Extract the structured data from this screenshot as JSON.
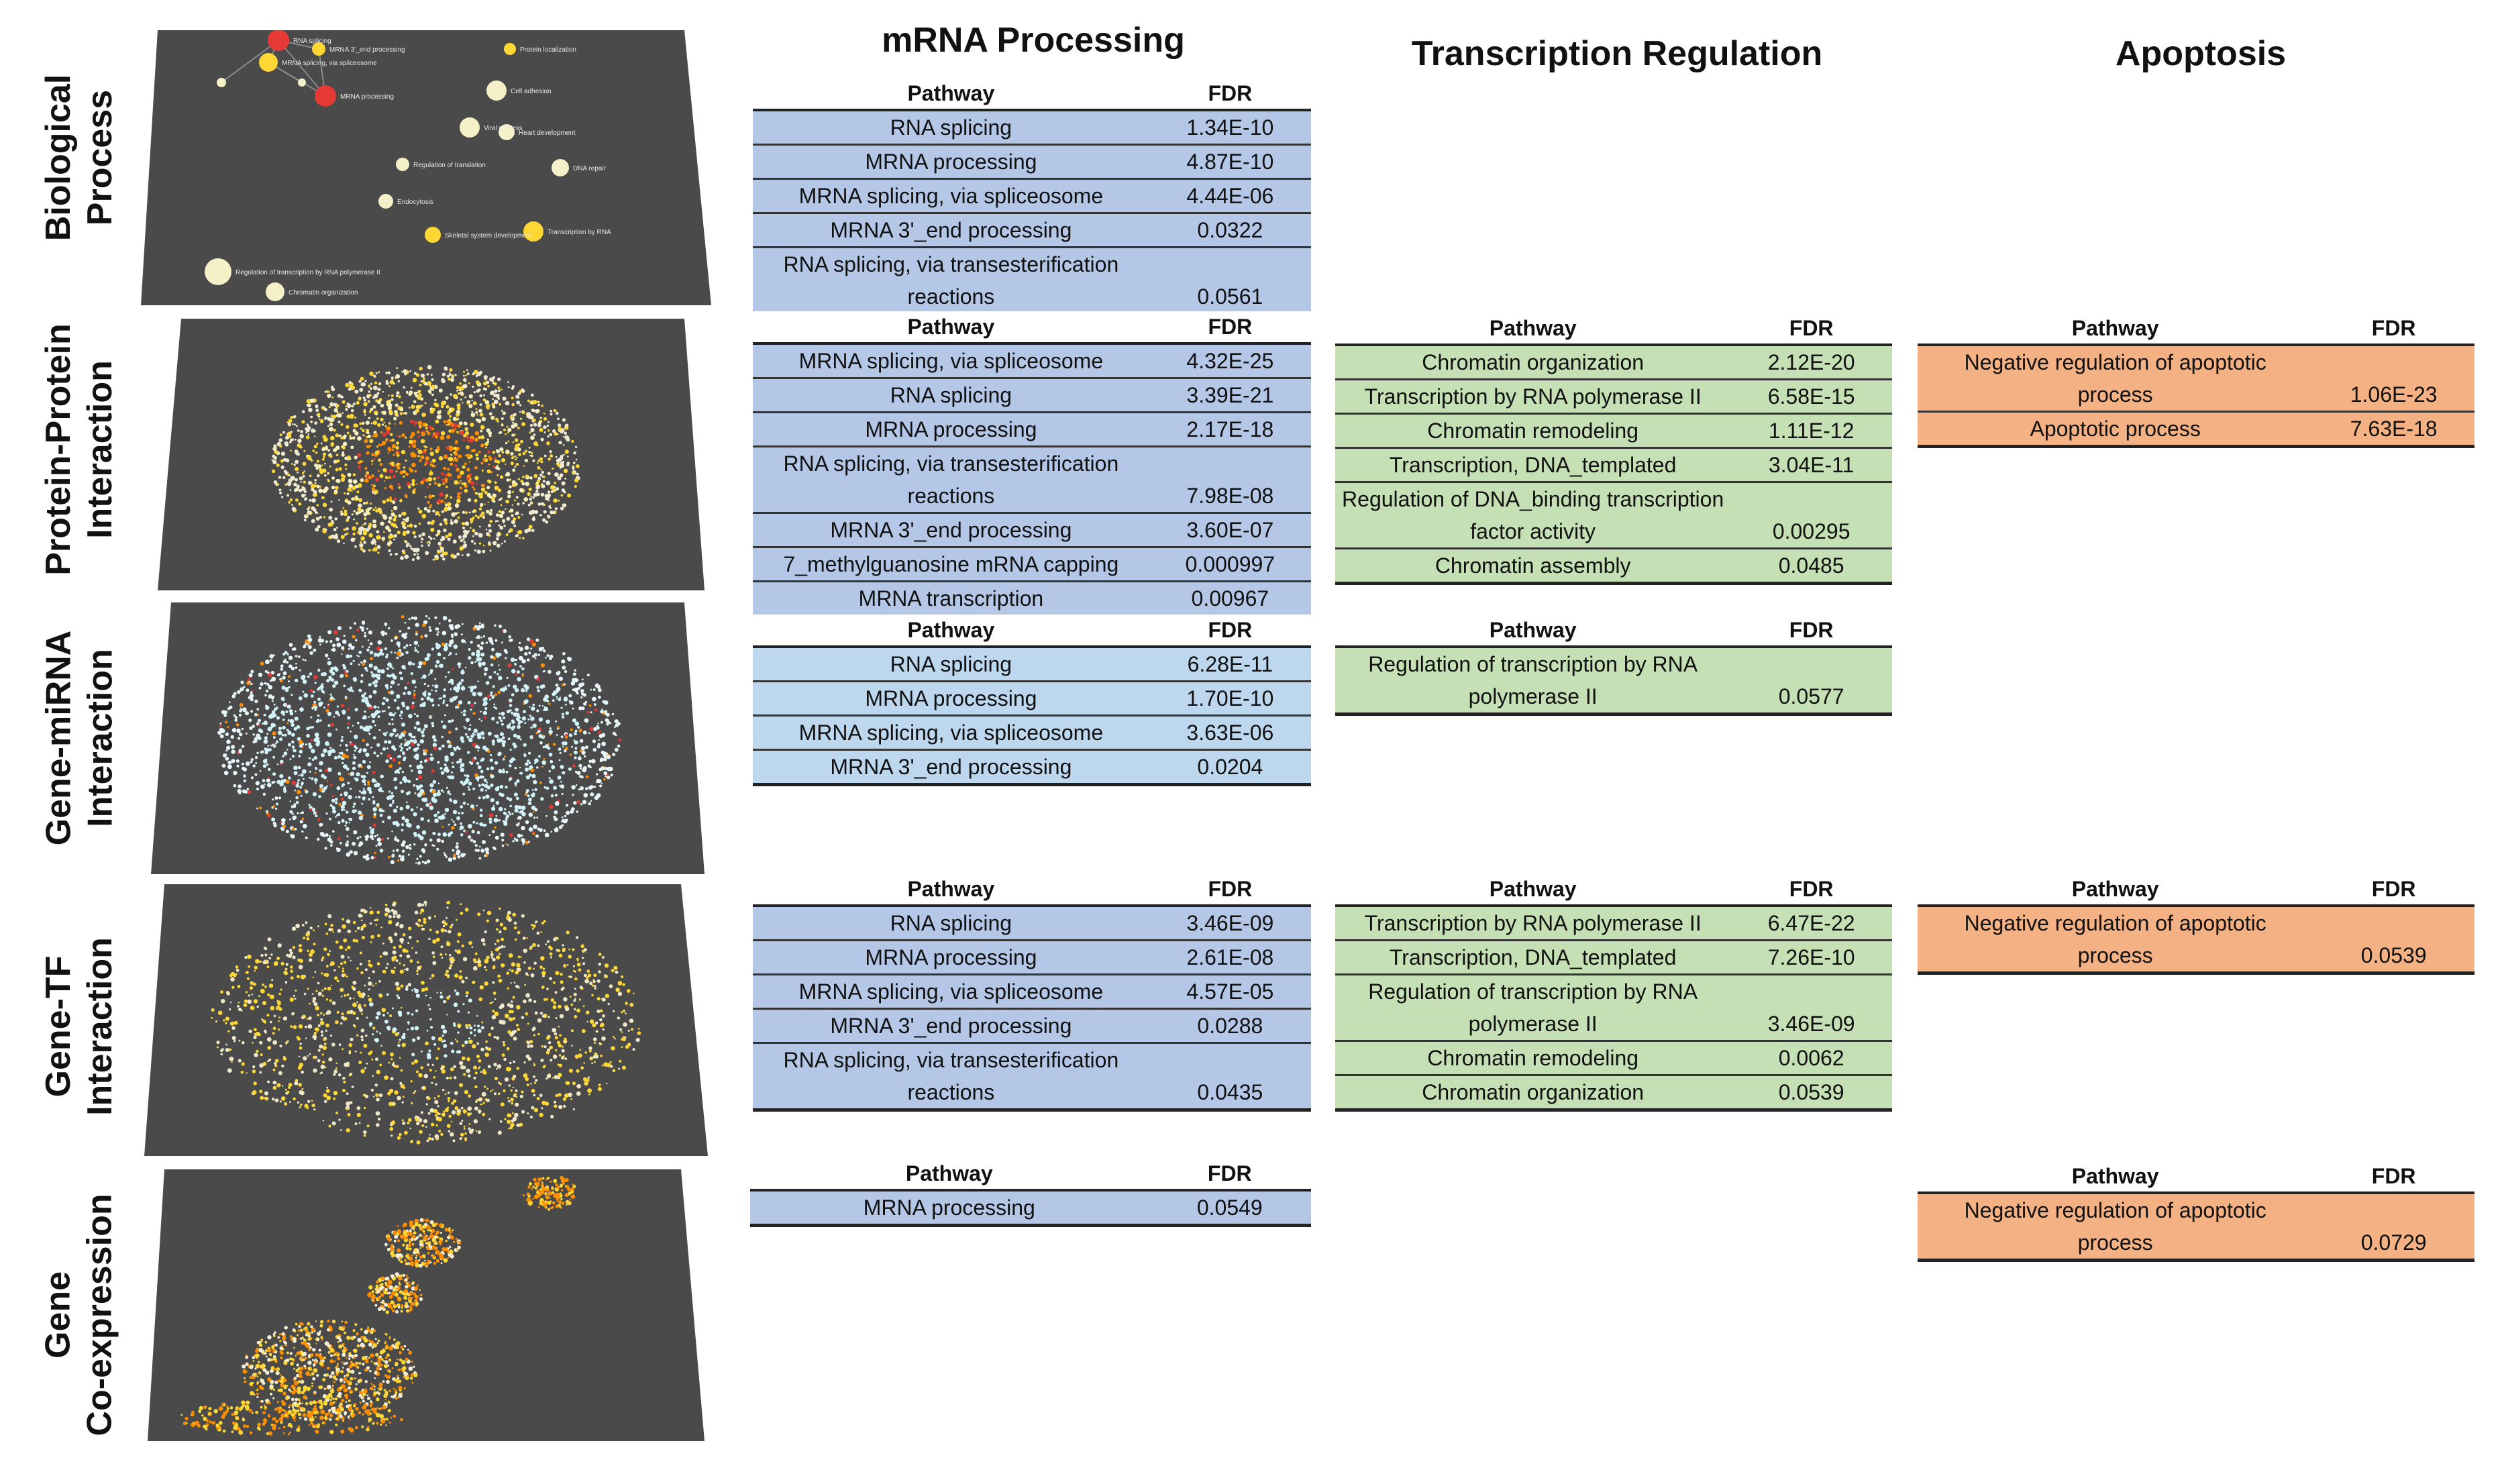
{
  "columns": {
    "mrna": "mRNA Processing",
    "transcription": "Transcription  Regulation",
    "apoptosis": "Apoptosis"
  },
  "rows": [
    {
      "line1": "Biological",
      "line2": "Process"
    },
    {
      "line1": "Protein-Protein",
      "line2": "Interaction"
    },
    {
      "line1": "Gene-miRNA",
      "line2": "Interaction"
    },
    {
      "line1": "Gene-TF",
      "line2": "Interaction"
    },
    {
      "line1": "Gene",
      "line2": "Co-expression"
    }
  ],
  "table_header": {
    "pathway": "Pathway",
    "fdr": "FDR"
  },
  "networks": {
    "bp_nodes": [
      "RNA splicing",
      "MRNA 3'_end processing",
      "MRNA splicing, via spliceosome",
      "MRNA processing",
      "Protein localization",
      "Cell adhesion",
      "Viral process",
      "Heart development",
      "Regulation of translation",
      "DNA repair",
      "Endocytosis",
      "Skeletal system development",
      "Transcription by RNA",
      "Regulation of transcription by RNA polymerase II",
      "Chromatin organization"
    ],
    "colors": {
      "background": "#4a4a4a",
      "red": "#e53935",
      "yellow": "#fdd835",
      "pale": "#f5f0c8",
      "cyan": "#d2f3f8",
      "orange": "#ff8f00"
    }
  },
  "tables": {
    "bp_mrna": [
      {
        "pathway": "RNA splicing",
        "fdr": "1.34E-10"
      },
      {
        "pathway": "MRNA processing",
        "fdr": "4.87E-10"
      },
      {
        "pathway": "MRNA splicing, via spliceosome",
        "fdr": "4.44E-06"
      },
      {
        "pathway": "MRNA 3'_end processing",
        "fdr": "0.0322"
      },
      {
        "pathway": "RNA splicing, via transesterification reactions",
        "fdr": "0.0561"
      }
    ],
    "ppi_mrna": [
      {
        "pathway": "MRNA splicing, via spliceosome",
        "fdr": "4.32E-25"
      },
      {
        "pathway": "RNA splicing",
        "fdr": "3.39E-21"
      },
      {
        "pathway": "MRNA processing",
        "fdr": "2.17E-18"
      },
      {
        "pathway": "RNA splicing, via transesterification reactions",
        "fdr": "7.98E-08"
      },
      {
        "pathway": "MRNA 3'_end processing",
        "fdr": "3.60E-07"
      },
      {
        "pathway": "7_methylguanosine mRNA capping",
        "fdr": "0.000997"
      },
      {
        "pathway": "MRNA transcription",
        "fdr": "0.00967"
      }
    ],
    "ppi_trans": [
      {
        "pathway": "Chromatin organization",
        "fdr": "2.12E-20"
      },
      {
        "pathway": "Transcription by RNA polymerase II",
        "fdr": "6.58E-15"
      },
      {
        "pathway": "Chromatin remodeling",
        "fdr": "1.11E-12"
      },
      {
        "pathway": "Transcription, DNA_templated",
        "fdr": "3.04E-11"
      },
      {
        "pathway": "Regulation of DNA_binding transcription factor activity",
        "fdr": "0.00295"
      },
      {
        "pathway": "Chromatin assembly",
        "fdr": "0.0485"
      }
    ],
    "ppi_apop": [
      {
        "pathway": "Negative regulation of apoptotic process",
        "fdr": "1.06E-23"
      },
      {
        "pathway": "Apoptotic process",
        "fdr": "7.63E-18"
      }
    ],
    "mirna_mrna": [
      {
        "pathway": "RNA splicing",
        "fdr": "6.28E-11"
      },
      {
        "pathway": "MRNA processing",
        "fdr": "1.70E-10"
      },
      {
        "pathway": "MRNA splicing, via spliceosome",
        "fdr": "3.63E-06"
      },
      {
        "pathway": "MRNA 3'_end processing",
        "fdr": "0.0204"
      }
    ],
    "mirna_trans": [
      {
        "pathway": "Regulation of transcription by RNA polymerase II",
        "fdr": "0.0577"
      }
    ],
    "tf_mrna": [
      {
        "pathway": "RNA splicing",
        "fdr": "3.46E-09"
      },
      {
        "pathway": "MRNA processing",
        "fdr": "2.61E-08"
      },
      {
        "pathway": "MRNA splicing, via spliceosome",
        "fdr": "4.57E-05"
      },
      {
        "pathway": "MRNA 3'_end processing",
        "fdr": "0.0288"
      },
      {
        "pathway": "RNA splicing, via transesterification reactions",
        "fdr": "0.0435"
      }
    ],
    "tf_trans": [
      {
        "pathway": "Transcription by RNA polymerase II",
        "fdr": "6.47E-22"
      },
      {
        "pathway": "Transcription, DNA_templated",
        "fdr": "7.26E-10"
      },
      {
        "pathway": "Regulation of transcription by RNA polymerase II",
        "fdr": "3.46E-09"
      },
      {
        "pathway": "Chromatin remodeling",
        "fdr": "0.0062"
      },
      {
        "pathway": "Chromatin organization",
        "fdr": "0.0539"
      }
    ],
    "tf_apop": [
      {
        "pathway": "Negative regulation of apoptotic process",
        "fdr": "0.0539"
      }
    ],
    "coexp_mrna": [
      {
        "pathway": "MRNA processing",
        "fdr": "0.0549"
      }
    ],
    "coexp_apop": [
      {
        "pathway": "Negative regulation of apoptotic process",
        "fdr": "0.0729"
      }
    ]
  }
}
